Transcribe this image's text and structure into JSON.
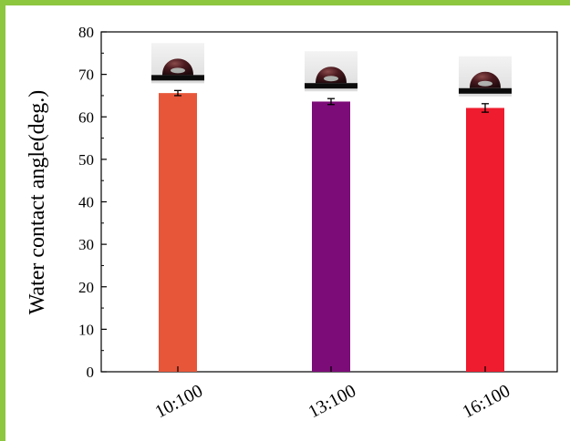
{
  "frame": {
    "border_color": "#8dc63f"
  },
  "chart_data": {
    "type": "bar",
    "categories": [
      "10:100",
      "13:100",
      "16:100"
    ],
    "values": [
      65.6,
      63.6,
      62.1
    ],
    "errors": [
      0.6,
      0.7,
      1.0
    ],
    "bar_colors": [
      "#e8563a",
      "#7c0c78",
      "#ee1c2e"
    ],
    "xlabel": "",
    "ylabel": "Water contact angle(deg.)",
    "ylim": [
      0,
      80
    ],
    "yticks": [
      0,
      10,
      20,
      30,
      40,
      50,
      60,
      70,
      80
    ],
    "grid": false,
    "legend": "none",
    "droplet_insets": [
      "droplet-photo",
      "droplet-photo",
      "droplet-photo"
    ]
  }
}
